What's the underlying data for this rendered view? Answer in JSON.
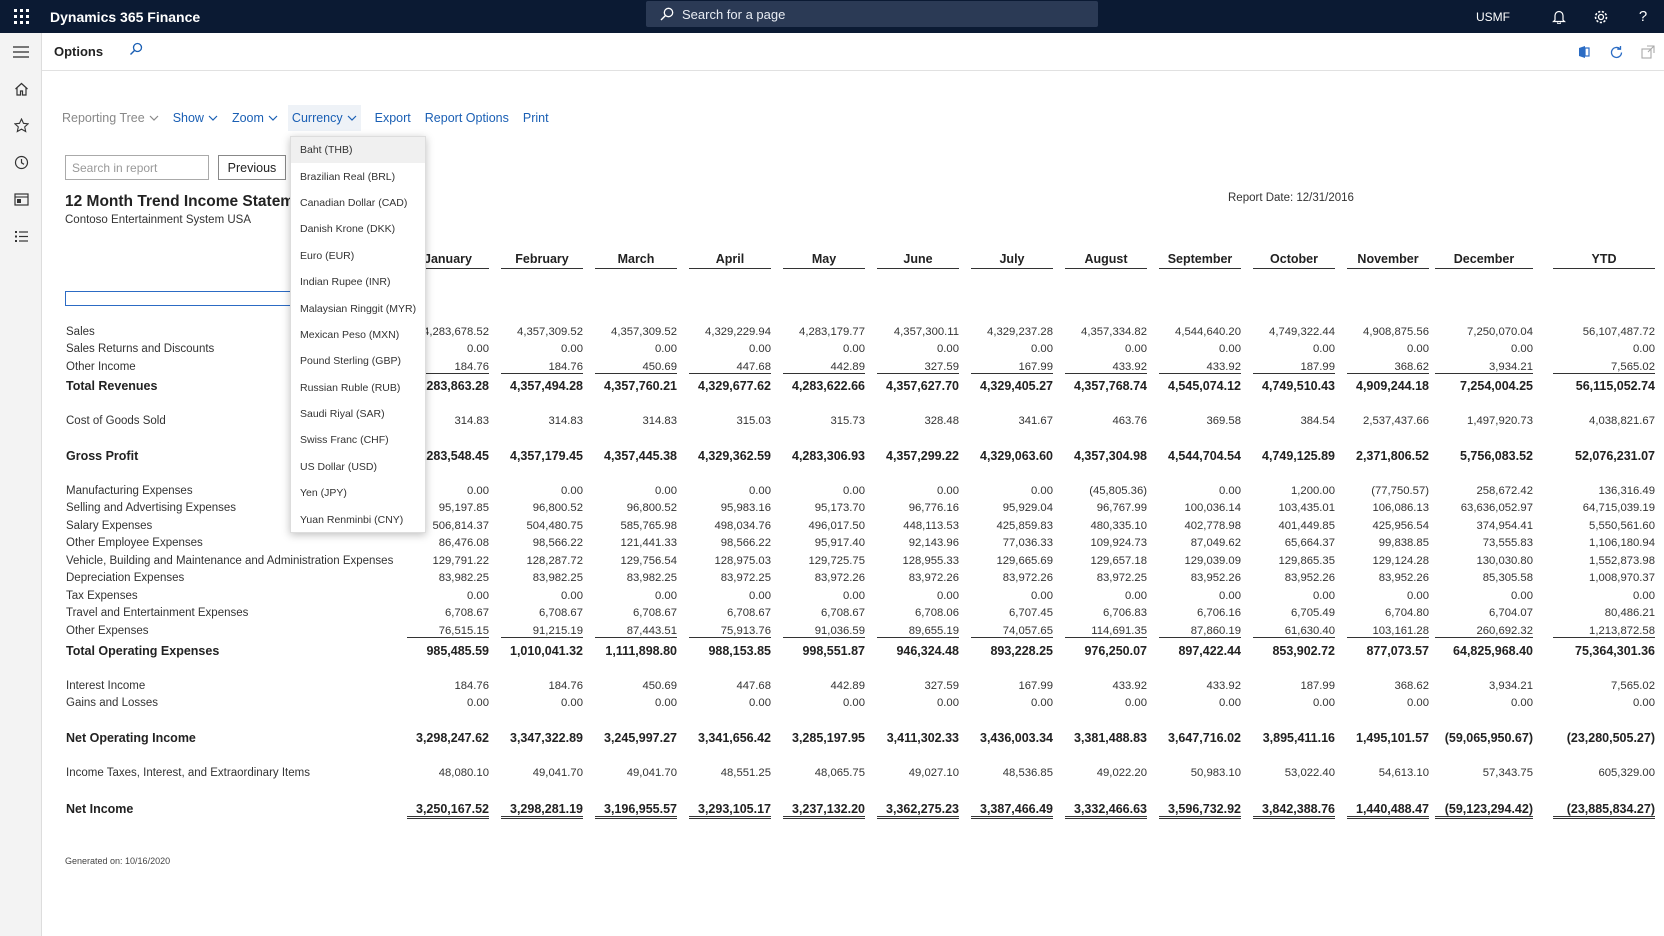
{
  "topbar": {
    "app_title": "Dynamics 365 Finance",
    "search_placeholder": "Search for a page",
    "company": "USMF",
    "icons": [
      "waffle-icon",
      "bell-icon",
      "gear-icon",
      "help-icon"
    ]
  },
  "leftnav": {
    "items": [
      "hamburger-icon",
      "home-icon",
      "star-icon",
      "clock-icon",
      "workspace-icon",
      "list-icon"
    ]
  },
  "actionbar": {
    "options_label": "Options",
    "icons": [
      "find-icon",
      "office-icon",
      "refresh-icon",
      "popout-icon"
    ]
  },
  "toolbar": {
    "reporting_tree": "Reporting Tree",
    "show": "Show",
    "zoom": "Zoom",
    "currency": "Currency",
    "export": "Export",
    "report_options": "Report Options",
    "print": "Print"
  },
  "search": {
    "placeholder": "Search in report",
    "previous": "Previous"
  },
  "currency_menu": [
    "Baht (THB)",
    "Brazilian Real (BRL)",
    "Canadian Dollar (CAD)",
    "Danish Krone (DKK)",
    "Euro (EUR)",
    "Indian Rupee (INR)",
    "Malaysian Ringgit (MYR)",
    "Mexican Peso (MXN)",
    "Pound Sterling (GBP)",
    "Russian Ruble (RUB)",
    "Saudi Riyal (SAR)",
    "Swiss Franc (CHF)",
    "US Dollar (USD)",
    "Yen (JPY)",
    "Yuan Renminbi (CNY)"
  ],
  "report": {
    "title": "12 Month Trend Income Statement",
    "subtitle": "Contoso Entertainment System USA",
    "date": "Report Date: 12/31/2016",
    "generated": "Generated on: 10/16/2020",
    "columns": [
      "January",
      "February",
      "March",
      "April",
      "May",
      "June",
      "July",
      "August",
      "September",
      "October",
      "November",
      "December",
      "YTD"
    ],
    "rows": [
      {
        "label": "Sales",
        "style": "normal",
        "values": [
          "4,283,678.52",
          "4,357,309.52",
          "4,357,309.52",
          "4,329,229.94",
          "4,283,179.77",
          "4,357,300.11",
          "4,329,237.28",
          "4,357,334.82",
          "4,544,640.20",
          "4,749,322.44",
          "4,908,875.56",
          "7,250,070.04",
          "56,107,487.72"
        ]
      },
      {
        "label": "Sales Returns and Discounts",
        "style": "normal",
        "values": [
          "0.00",
          "0.00",
          "0.00",
          "0.00",
          "0.00",
          "0.00",
          "0.00",
          "0.00",
          "0.00",
          "0.00",
          "0.00",
          "0.00",
          "0.00"
        ]
      },
      {
        "label": "Other Income",
        "style": "uline",
        "values": [
          "184.76",
          "184.76",
          "450.69",
          "447.68",
          "442.89",
          "327.59",
          "167.99",
          "433.92",
          "433.92",
          "187.99",
          "368.62",
          "3,934.21",
          "7,565.02"
        ]
      },
      {
        "label": "Total Revenues",
        "style": "bold",
        "values": [
          "4,283,863.28",
          "4,357,494.28",
          "4,357,760.21",
          "4,329,677.62",
          "4,283,622.66",
          "4,357,627.70",
          "4,329,405.27",
          "4,357,768.74",
          "4,545,074.12",
          "4,749,510.43",
          "4,909,244.18",
          "7,254,004.25",
          "56,115,052.74"
        ]
      },
      {
        "label": "Cost of Goods Sold",
        "style": "normal",
        "values": [
          "314.83",
          "314.83",
          "314.83",
          "315.03",
          "315.73",
          "328.48",
          "341.67",
          "463.76",
          "369.58",
          "384.54",
          "2,537,437.66",
          "1,497,920.73",
          "4,038,821.67"
        ]
      },
      {
        "label": "Gross Profit",
        "style": "bold",
        "values": [
          "4,283,548.45",
          "4,357,179.45",
          "4,357,445.38",
          "4,329,362.59",
          "4,283,306.93",
          "4,357,299.22",
          "4,329,063.60",
          "4,357,304.98",
          "4,544,704.54",
          "4,749,125.89",
          "2,371,806.52",
          "5,756,083.52",
          "52,076,231.07"
        ]
      },
      {
        "label": "Manufacturing Expenses",
        "style": "normal",
        "values": [
          "0.00",
          "0.00",
          "0.00",
          "0.00",
          "0.00",
          "0.00",
          "0.00",
          "(45,805.36)",
          "0.00",
          "1,200.00",
          "(77,750.57)",
          "258,672.42",
          "136,316.49"
        ]
      },
      {
        "label": "Selling and Advertising Expenses",
        "style": "normal",
        "values": [
          "95,197.85",
          "96,800.52",
          "96,800.52",
          "95,983.16",
          "95,173.70",
          "96,776.16",
          "95,929.04",
          "96,767.99",
          "100,036.14",
          "103,435.01",
          "106,086.13",
          "63,636,052.97",
          "64,715,039.19"
        ]
      },
      {
        "label": "Salary Expenses",
        "style": "normal",
        "values": [
          "506,814.37",
          "504,480.75",
          "585,765.98",
          "498,034.76",
          "496,017.50",
          "448,113.53",
          "425,859.83",
          "480,335.10",
          "402,778.98",
          "401,449.85",
          "425,956.54",
          "374,954.41",
          "5,550,561.60"
        ]
      },
      {
        "label": "Other Employee Expenses",
        "style": "normal",
        "values": [
          "86,476.08",
          "98,566.22",
          "121,441.33",
          "98,566.22",
          "95,917.40",
          "92,143.96",
          "77,036.33",
          "109,924.73",
          "87,049.62",
          "65,664.37",
          "99,838.85",
          "73,555.83",
          "1,106,180.94"
        ]
      },
      {
        "label": "Vehicle, Building and Maintenance and Administration Expenses",
        "style": "normal",
        "values": [
          "129,791.22",
          "128,287.72",
          "129,756.54",
          "128,975.03",
          "129,725.75",
          "128,955.33",
          "129,665.69",
          "129,657.18",
          "129,039.09",
          "129,865.35",
          "129,124.28",
          "130,030.80",
          "1,552,873.98"
        ]
      },
      {
        "label": "Depreciation Expenses",
        "style": "normal",
        "values": [
          "83,982.25",
          "83,982.25",
          "83,982.25",
          "83,972.25",
          "83,972.26",
          "83,972.26",
          "83,972.26",
          "83,972.25",
          "83,952.26",
          "83,952.26",
          "83,952.26",
          "85,305.58",
          "1,008,970.37"
        ]
      },
      {
        "label": "Tax Expenses",
        "style": "normal",
        "values": [
          "0.00",
          "0.00",
          "0.00",
          "0.00",
          "0.00",
          "0.00",
          "0.00",
          "0.00",
          "0.00",
          "0.00",
          "0.00",
          "0.00",
          "0.00"
        ]
      },
      {
        "label": "Travel and Entertainment Expenses",
        "style": "normal",
        "values": [
          "6,708.67",
          "6,708.67",
          "6,708.67",
          "6,708.67",
          "6,708.67",
          "6,708.06",
          "6,707.45",
          "6,706.83",
          "6,706.16",
          "6,705.49",
          "6,704.80",
          "6,704.07",
          "80,486.21"
        ]
      },
      {
        "label": "Other Expenses",
        "style": "uline",
        "values": [
          "76,515.15",
          "91,215.19",
          "87,443.51",
          "75,913.76",
          "91,036.59",
          "89,655.19",
          "74,057.65",
          "114,691.35",
          "87,860.19",
          "61,630.40",
          "103,161.28",
          "260,692.32",
          "1,213,872.58"
        ]
      },
      {
        "label": "Total Operating Expenses",
        "style": "bold",
        "values": [
          "985,485.59",
          "1,010,041.32",
          "1,111,898.80",
          "988,153.85",
          "998,551.87",
          "946,324.48",
          "893,228.25",
          "976,250.07",
          "897,422.44",
          "853,902.72",
          "877,073.57",
          "64,825,968.40",
          "75,364,301.36"
        ]
      },
      {
        "label": "Interest Income",
        "style": "normal",
        "values": [
          "184.76",
          "184.76",
          "450.69",
          "447.68",
          "442.89",
          "327.59",
          "167.99",
          "433.92",
          "433.92",
          "187.99",
          "368.62",
          "3,934.21",
          "7,565.02"
        ]
      },
      {
        "label": "Gains and Losses",
        "style": "normal",
        "values": [
          "0.00",
          "0.00",
          "0.00",
          "0.00",
          "0.00",
          "0.00",
          "0.00",
          "0.00",
          "0.00",
          "0.00",
          "0.00",
          "0.00",
          "0.00"
        ]
      },
      {
        "label": "Net Operating Income",
        "style": "bold",
        "values": [
          "3,298,247.62",
          "3,347,322.89",
          "3,245,997.27",
          "3,341,656.42",
          "3,285,197.95",
          "3,411,302.33",
          "3,436,003.34",
          "3,381,488.83",
          "3,647,716.02",
          "3,895,411.16",
          "1,495,101.57",
          "(59,065,950.67)",
          "(23,280,505.27)"
        ]
      },
      {
        "label": "Income Taxes, Interest, and Extraordinary Items",
        "style": "normal",
        "values": [
          "48,080.10",
          "49,041.70",
          "49,041.70",
          "48,551.25",
          "48,065.75",
          "49,027.10",
          "48,536.85",
          "49,022.20",
          "50,983.10",
          "53,022.40",
          "54,613.10",
          "57,343.75",
          "605,329.00"
        ]
      },
      {
        "label": "Net Income",
        "style": "dline",
        "values": [
          "3,250,167.52",
          "3,298,281.19",
          "3,196,955.57",
          "3,293,105.17",
          "3,237,132.20",
          "3,362,275.23",
          "3,387,466.49",
          "3,332,466.63",
          "3,596,732.92",
          "3,842,388.76",
          "1,440,488.47",
          "(59,123,294.42)",
          "(23,885,834.27)"
        ]
      }
    ]
  }
}
